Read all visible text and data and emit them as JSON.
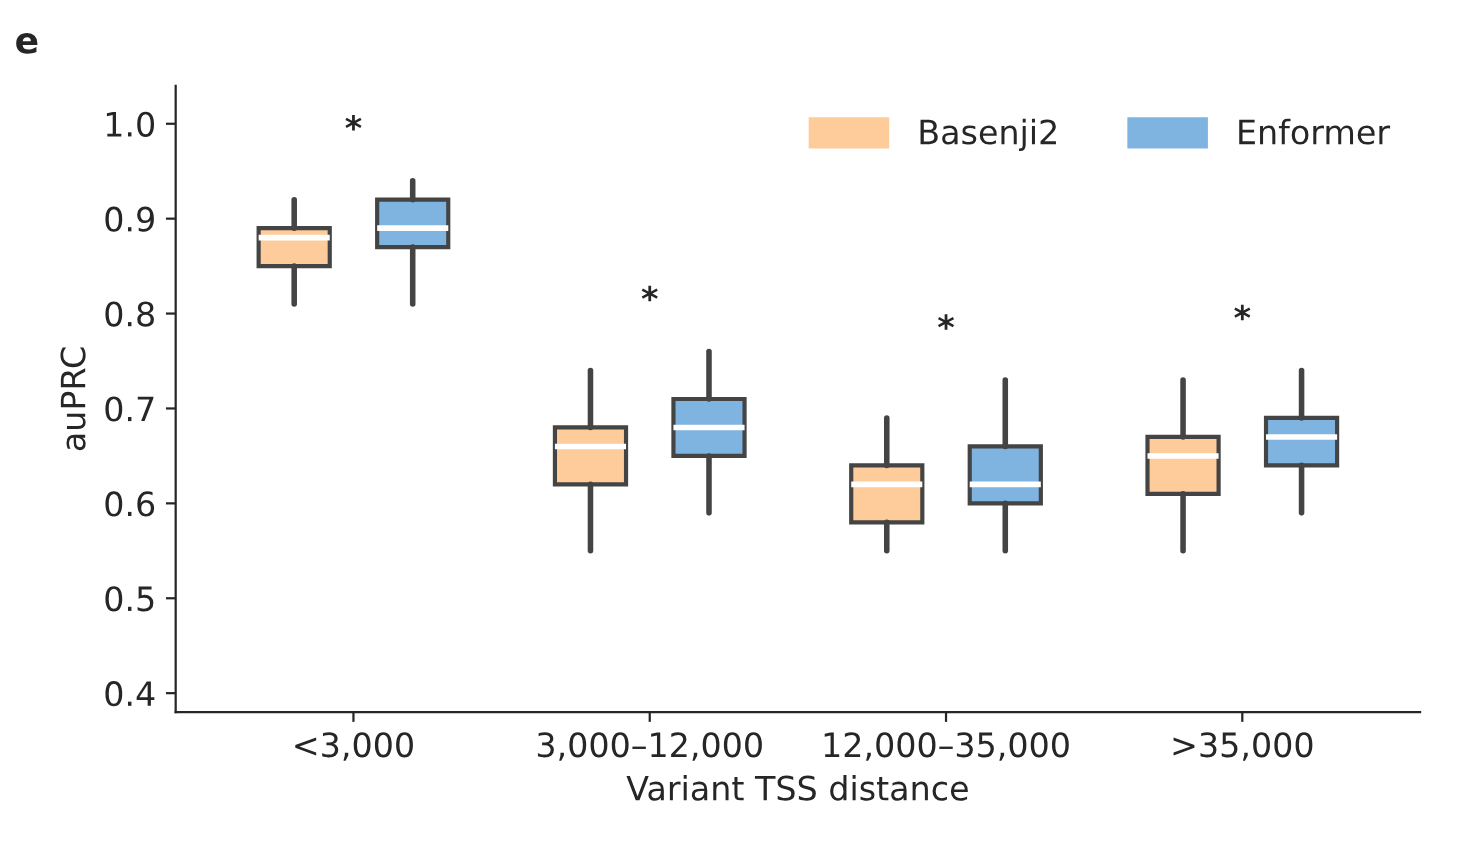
{
  "chart_data": {
    "type": "box",
    "title": "e",
    "xlabel": "Variant TSS distance",
    "ylabel": "auPRC",
    "categories": [
      "<3,000",
      "3,000–12,000",
      "12,000–35,000",
      ">35,000"
    ],
    "series": [
      {
        "name": "Basenji2",
        "color": "#fdcc9a",
        "boxes": [
          {
            "low": 0.81,
            "q1": 0.85,
            "median": 0.88,
            "q3": 0.89,
            "high": 0.92
          },
          {
            "low": 0.55,
            "q1": 0.62,
            "median": 0.66,
            "q3": 0.68,
            "high": 0.74
          },
          {
            "low": 0.55,
            "q1": 0.58,
            "median": 0.62,
            "q3": 0.64,
            "high": 0.69
          },
          {
            "low": 0.55,
            "q1": 0.61,
            "median": 0.65,
            "q3": 0.67,
            "high": 0.73
          }
        ]
      },
      {
        "name": "Enformer",
        "color": "#7fb3e0",
        "boxes": [
          {
            "low": 0.81,
            "q1": 0.87,
            "median": 0.89,
            "q3": 0.92,
            "high": 0.94
          },
          {
            "low": 0.59,
            "q1": 0.65,
            "median": 0.68,
            "q3": 0.71,
            "high": 0.76
          },
          {
            "low": 0.55,
            "q1": 0.6,
            "median": 0.62,
            "q3": 0.66,
            "high": 0.73
          },
          {
            "low": 0.59,
            "q1": 0.64,
            "median": 0.67,
            "q3": 0.69,
            "high": 0.74
          }
        ]
      }
    ],
    "annotations": [
      "*",
      "*",
      "*",
      "*"
    ],
    "ylim": [
      0.38,
      1.04
    ],
    "yticks": [
      0.4,
      0.5,
      0.6,
      0.7,
      0.8,
      0.9,
      {
        "value": 1.0,
        "label": "1.0"
      }
    ],
    "grid": false,
    "legend": "top right"
  }
}
